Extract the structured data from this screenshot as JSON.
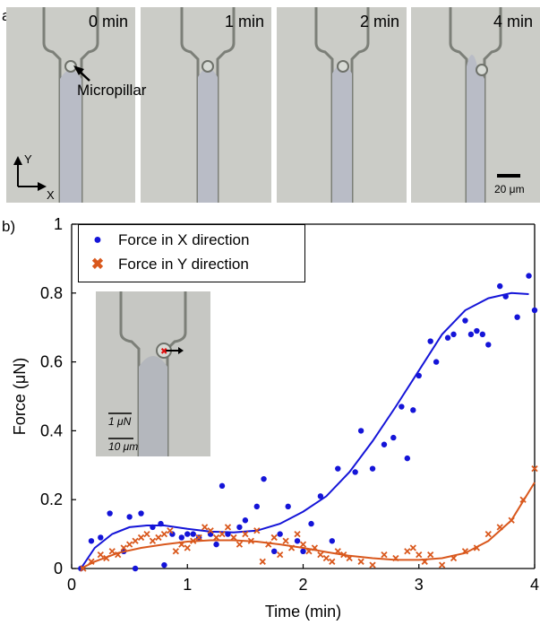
{
  "panel_a": {
    "label": "a)",
    "frames": [
      {
        "time": "0 min"
      },
      {
        "time": "1 min"
      },
      {
        "time": "2 min"
      },
      {
        "time": "4 min"
      }
    ],
    "micropillar_label": "Micropillar",
    "axis_y": "Y",
    "axis_x": "X",
    "scale_bar": "20 μm"
  },
  "panel_b": {
    "label": "b)",
    "inset": {
      "force_scale": "1 μN",
      "length_scale": "10 μm"
    }
  },
  "chart_data": {
    "type": "scatter",
    "xlabel": "Time (min)",
    "ylabel": "Force (μN)",
    "xlim": [
      0,
      4
    ],
    "ylim": [
      0,
      1
    ],
    "xticks": [
      0,
      1,
      2,
      3,
      4
    ],
    "yticks": [
      0,
      0.2,
      0.4,
      0.6,
      0.8,
      1
    ],
    "xtick_labels": [
      "0",
      "1",
      "2",
      "3",
      "4"
    ],
    "ytick_labels": [
      "0",
      "0.2",
      "0.4",
      "0.6",
      "0.8",
      "1"
    ],
    "legend_position": "top-left",
    "series": [
      {
        "name": "Force in X direction",
        "marker": "dot",
        "color": "#1414d8",
        "points": [
          [
            0.08,
            0.0
          ],
          [
            0.17,
            0.08
          ],
          [
            0.25,
            0.09
          ],
          [
            0.33,
            0.16
          ],
          [
            0.45,
            0.05
          ],
          [
            0.5,
            0.15
          ],
          [
            0.55,
            0.0
          ],
          [
            0.6,
            0.16
          ],
          [
            0.7,
            0.12
          ],
          [
            0.77,
            0.13
          ],
          [
            0.8,
            0.01
          ],
          [
            0.87,
            0.1
          ],
          [
            0.95,
            0.09
          ],
          [
            1.0,
            0.1
          ],
          [
            1.05,
            0.1
          ],
          [
            1.1,
            0.09
          ],
          [
            1.2,
            0.1
          ],
          [
            1.25,
            0.07
          ],
          [
            1.3,
            0.24
          ],
          [
            1.35,
            0.1
          ],
          [
            1.45,
            0.12
          ],
          [
            1.5,
            0.14
          ],
          [
            1.6,
            0.18
          ],
          [
            1.66,
            0.26
          ],
          [
            1.75,
            0.05
          ],
          [
            1.8,
            0.1
          ],
          [
            1.87,
            0.18
          ],
          [
            1.95,
            0.08
          ],
          [
            2.0,
            0.05
          ],
          [
            2.07,
            0.13
          ],
          [
            2.15,
            0.21
          ],
          [
            2.25,
            0.08
          ],
          [
            2.3,
            0.29
          ],
          [
            2.45,
            0.28
          ],
          [
            2.5,
            0.4
          ],
          [
            2.6,
            0.29
          ],
          [
            2.7,
            0.36
          ],
          [
            2.78,
            0.38
          ],
          [
            2.85,
            0.47
          ],
          [
            2.9,
            0.32
          ],
          [
            2.95,
            0.46
          ],
          [
            3.0,
            0.56
          ],
          [
            3.1,
            0.66
          ],
          [
            3.15,
            0.6
          ],
          [
            3.25,
            0.67
          ],
          [
            3.3,
            0.68
          ],
          [
            3.4,
            0.72
          ],
          [
            3.45,
            0.68
          ],
          [
            3.5,
            0.69
          ],
          [
            3.55,
            0.68
          ],
          [
            3.6,
            0.65
          ],
          [
            3.7,
            0.82
          ],
          [
            3.75,
            0.79
          ],
          [
            3.85,
            0.73
          ],
          [
            3.95,
            0.85
          ],
          [
            4.0,
            0.75
          ]
        ],
        "fit": [
          [
            0.08,
            0.0
          ],
          [
            0.2,
            0.06
          ],
          [
            0.35,
            0.1
          ],
          [
            0.5,
            0.12
          ],
          [
            0.65,
            0.125
          ],
          [
            0.8,
            0.125
          ],
          [
            1.0,
            0.115
          ],
          [
            1.2,
            0.107
          ],
          [
            1.4,
            0.105
          ],
          [
            1.6,
            0.11
          ],
          [
            1.8,
            0.13
          ],
          [
            2.0,
            0.165
          ],
          [
            2.2,
            0.21
          ],
          [
            2.4,
            0.28
          ],
          [
            2.6,
            0.37
          ],
          [
            2.8,
            0.47
          ],
          [
            3.0,
            0.575
          ],
          [
            3.2,
            0.68
          ],
          [
            3.4,
            0.75
          ],
          [
            3.6,
            0.785
          ],
          [
            3.8,
            0.8
          ],
          [
            3.95,
            0.797
          ]
        ]
      },
      {
        "name": "Force in Y direction",
        "marker": "x",
        "color": "#d9581d",
        "points": [
          [
            0.1,
            0.0
          ],
          [
            0.17,
            0.02
          ],
          [
            0.25,
            0.04
          ],
          [
            0.3,
            0.03
          ],
          [
            0.35,
            0.05
          ],
          [
            0.4,
            0.04
          ],
          [
            0.45,
            0.06
          ],
          [
            0.5,
            0.07
          ],
          [
            0.55,
            0.08
          ],
          [
            0.6,
            0.09
          ],
          [
            0.65,
            0.1
          ],
          [
            0.7,
            0.08
          ],
          [
            0.75,
            0.09
          ],
          [
            0.8,
            0.1
          ],
          [
            0.85,
            0.11
          ],
          [
            0.9,
            0.05
          ],
          [
            0.95,
            0.07
          ],
          [
            1.0,
            0.06
          ],
          [
            1.05,
            0.08
          ],
          [
            1.1,
            0.09
          ],
          [
            1.15,
            0.12
          ],
          [
            1.2,
            0.11
          ],
          [
            1.25,
            0.09
          ],
          [
            1.3,
            0.1
          ],
          [
            1.35,
            0.12
          ],
          [
            1.4,
            0.09
          ],
          [
            1.45,
            0.07
          ],
          [
            1.5,
            0.1
          ],
          [
            1.55,
            0.08
          ],
          [
            1.6,
            0.11
          ],
          [
            1.65,
            0.02
          ],
          [
            1.7,
            0.07
          ],
          [
            1.75,
            0.09
          ],
          [
            1.8,
            0.04
          ],
          [
            1.85,
            0.08
          ],
          [
            1.9,
            0.06
          ],
          [
            1.95,
            0.1
          ],
          [
            2.0,
            0.07
          ],
          [
            2.05,
            0.05
          ],
          [
            2.1,
            0.06
          ],
          [
            2.15,
            0.04
          ],
          [
            2.2,
            0.03
          ],
          [
            2.25,
            0.02
          ],
          [
            2.3,
            0.05
          ],
          [
            2.35,
            0.04
          ],
          [
            2.4,
            0.03
          ],
          [
            2.5,
            0.02
          ],
          [
            2.6,
            0.01
          ],
          [
            2.7,
            0.04
          ],
          [
            2.8,
            0.03
          ],
          [
            2.9,
            0.05
          ],
          [
            2.95,
            0.06
          ],
          [
            3.0,
            0.04
          ],
          [
            3.05,
            0.02
          ],
          [
            3.1,
            0.04
          ],
          [
            3.2,
            0.01
          ],
          [
            3.3,
            0.03
          ],
          [
            3.4,
            0.05
          ],
          [
            3.5,
            0.06
          ],
          [
            3.6,
            0.1
          ],
          [
            3.7,
            0.12
          ],
          [
            3.8,
            0.14
          ],
          [
            3.9,
            0.2
          ],
          [
            4.0,
            0.29
          ]
        ],
        "fit": [
          [
            0.08,
            0.0
          ],
          [
            0.2,
            0.02
          ],
          [
            0.4,
            0.045
          ],
          [
            0.6,
            0.06
          ],
          [
            0.8,
            0.07
          ],
          [
            1.0,
            0.078
          ],
          [
            1.2,
            0.082
          ],
          [
            1.4,
            0.082
          ],
          [
            1.6,
            0.078
          ],
          [
            1.8,
            0.07
          ],
          [
            2.0,
            0.06
          ],
          [
            2.2,
            0.048
          ],
          [
            2.4,
            0.037
          ],
          [
            2.6,
            0.03
          ],
          [
            2.8,
            0.025
          ],
          [
            3.0,
            0.025
          ],
          [
            3.2,
            0.03
          ],
          [
            3.4,
            0.045
          ],
          [
            3.6,
            0.08
          ],
          [
            3.8,
            0.14
          ],
          [
            4.0,
            0.25
          ]
        ]
      }
    ]
  }
}
